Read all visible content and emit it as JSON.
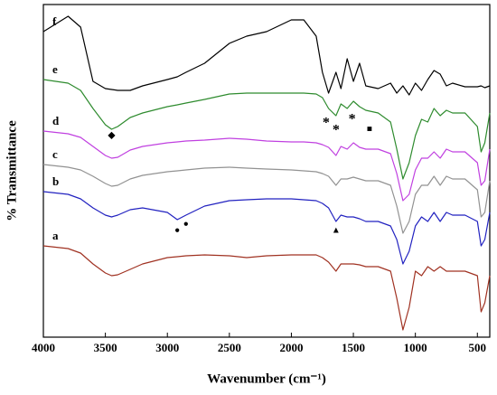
{
  "chart_data": {
    "type": "line",
    "x_label": "Wavenumber (cm⁻¹)",
    "y_label": "% Transmittance",
    "xlim": [
      4000,
      400
    ],
    "ylim": [
      0,
      368
    ],
    "xticks": [
      4000,
      3500,
      3000,
      2500,
      2000,
      1500,
      1000,
      500
    ],
    "x": [
      4000,
      3800,
      3700,
      3600,
      3500,
      3450,
      3400,
      3300,
      3200,
      3000,
      2920,
      2850,
      2700,
      2500,
      2360,
      2200,
      2000,
      1900,
      1800,
      1750,
      1700,
      1640,
      1600,
      1550,
      1500,
      1450,
      1400,
      1300,
      1200,
      1150,
      1100,
      1050,
      1000,
      950,
      900,
      850,
      800,
      750,
      700,
      600,
      500,
      470,
      440,
      400
    ],
    "series": [
      {
        "name": "a",
        "color": "#a03222",
        "values": [
          101,
          98,
          93,
          81,
          71,
          68,
          69,
          75,
          81,
          88,
          89,
          90,
          91,
          90,
          88,
          90,
          91,
          91,
          91,
          88,
          83,
          73,
          81,
          81,
          81,
          80,
          78,
          78,
          73,
          43,
          8,
          33,
          73,
          68,
          78,
          73,
          78,
          73,
          73,
          73,
          68,
          28,
          38,
          68
        ]
      },
      {
        "name": "b",
        "color": "#2222c0",
        "values": [
          161,
          158,
          153,
          143,
          135,
          133,
          135,
          141,
          143,
          138,
          130,
          135,
          145,
          151,
          152,
          153,
          153,
          152,
          151,
          148,
          143,
          128,
          135,
          133,
          133,
          131,
          128,
          128,
          123,
          108,
          81,
          95,
          123,
          133,
          128,
          138,
          128,
          138,
          135,
          135,
          128,
          101,
          108,
          138
        ]
      },
      {
        "name": "c",
        "color": "#929292",
        "values": [
          191,
          188,
          185,
          178,
          170,
          167,
          168,
          175,
          179,
          183,
          184,
          185,
          187,
          188,
          187,
          186,
          185,
          184,
          183,
          181,
          178,
          168,
          175,
          175,
          177,
          175,
          173,
          173,
          168,
          145,
          115,
          128,
          158,
          168,
          168,
          178,
          168,
          178,
          175,
          175,
          163,
          133,
          138,
          173
        ]
      },
      {
        "name": "d",
        "color": "#c040e0",
        "values": [
          228,
          225,
          221,
          211,
          201,
          198,
          199,
          207,
          211,
          215,
          216,
          217,
          218,
          220,
          219,
          217,
          216,
          216,
          215,
          213,
          210,
          201,
          211,
          208,
          215,
          210,
          208,
          208,
          203,
          181,
          151,
          158,
          185,
          198,
          198,
          205,
          198,
          208,
          205,
          205,
          193,
          168,
          173,
          208
        ]
      },
      {
        "name": "e",
        "color": "#2e8b2e",
        "values": [
          285,
          281,
          273,
          253,
          235,
          230,
          233,
          243,
          248,
          255,
          257,
          259,
          263,
          269,
          270,
          270,
          270,
          270,
          269,
          265,
          253,
          245,
          258,
          253,
          261,
          255,
          251,
          248,
          238,
          208,
          175,
          193,
          223,
          241,
          238,
          253,
          245,
          251,
          248,
          248,
          233,
          205,
          215,
          248
        ]
      },
      {
        "name": "f",
        "color": "#000000",
        "values": [
          338,
          355,
          343,
          283,
          275,
          274,
          273,
          273,
          278,
          285,
          288,
          293,
          303,
          325,
          333,
          338,
          351,
          351,
          333,
          293,
          270,
          293,
          275,
          308,
          283,
          303,
          278,
          275,
          281,
          270,
          278,
          268,
          281,
          273,
          285,
          295,
          291,
          278,
          281,
          277,
          277,
          278,
          276,
          278
        ]
      }
    ],
    "annotations": [
      {
        "text": "◆",
        "x": 3450,
        "y": 223
      },
      {
        "text": "*",
        "x": 1720,
        "y": 236
      },
      {
        "text": "*",
        "x": 1640,
        "y": 228
      },
      {
        "text": "*",
        "x": 1510,
        "y": 240
      },
      {
        "text": "■",
        "x": 1370,
        "y": 230
      },
      {
        "text": "●",
        "x": 2920,
        "y": 118
      },
      {
        "text": "●",
        "x": 2850,
        "y": 125
      },
      {
        "text": "▲",
        "x": 1640,
        "y": 118
      }
    ]
  }
}
